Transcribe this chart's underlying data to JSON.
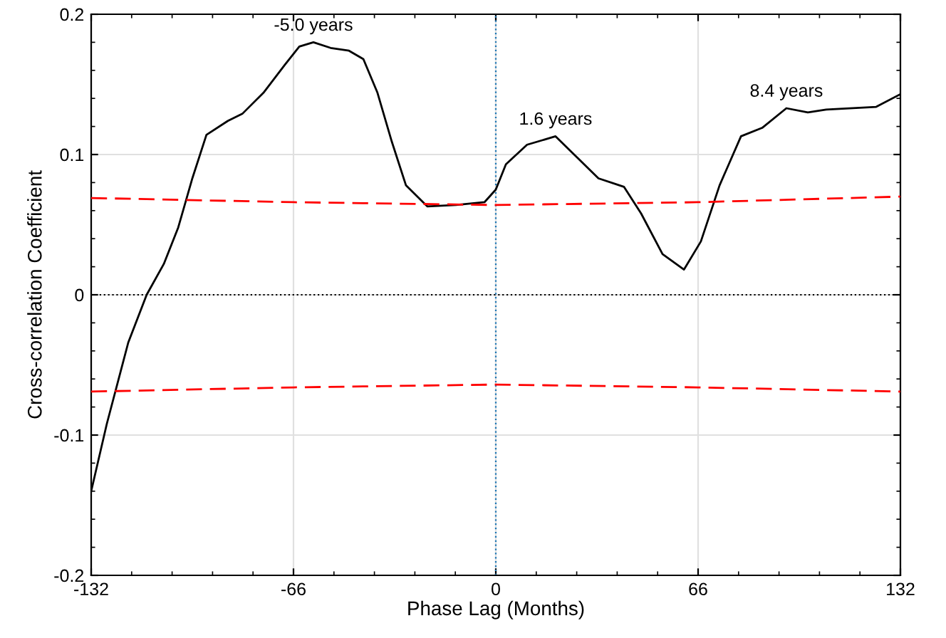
{
  "chart_data": {
    "type": "line",
    "xlabel": "Phase Lag (Months)",
    "ylabel": "Cross-correlation Coefficient",
    "xlim": [
      -132,
      132
    ],
    "ylim": [
      -0.2,
      0.2
    ],
    "xticks": [
      -132,
      -66,
      0,
      66,
      132
    ],
    "yticks": [
      -0.2,
      -0.1,
      0,
      0.1,
      0.2
    ],
    "grid": true,
    "series": [
      {
        "color": "#000000",
        "line_style": "solid",
        "x": [
          -132,
          -126.9,
          -119.9,
          -113.9,
          -108.3,
          -103.6,
          -99,
          -94.4,
          -87.4,
          -82.7,
          -75.8,
          -68.8,
          -64.1,
          -59.5,
          -53.9,
          -47.9,
          -43.2,
          -38.6,
          -33.9,
          -29.3,
          -22.3,
          -13,
          -3.7,
          0,
          3.3,
          10.2,
          19.5,
          26.5,
          33.5,
          41.8,
          47.4,
          54.4,
          61.4,
          66.9,
          73,
          80,
          86.9,
          94.8,
          101.8,
          107.8,
          124.1,
          132
        ],
        "values": [
          -0.14,
          -0.092,
          -0.034,
          0,
          0.022,
          0.048,
          0.083,
          0.114,
          0.124,
          0.129,
          0.144,
          0.164,
          0.177,
          0.18,
          0.176,
          0.174,
          0.168,
          0.144,
          0.109,
          0.078,
          0.063,
          0.064,
          0.066,
          0.075,
          0.093,
          0.107,
          0.113,
          0.098,
          0.083,
          0.077,
          0.058,
          0.029,
          0.018,
          0.038,
          0.078,
          0.113,
          0.119,
          0.133,
          0.13,
          0.132,
          0.134,
          0.143
        ]
      },
      {
        "color": "#ff0000",
        "line_style": "dashed",
        "x": [
          -132,
          -66,
          0,
          66,
          132
        ],
        "values": [
          0.069,
          0.066,
          0.064,
          0.066,
          0.07
        ]
      },
      {
        "color": "#ff0000",
        "line_style": "dashed",
        "x": [
          -132,
          -66,
          0,
          66,
          132
        ],
        "values": [
          -0.069,
          -0.066,
          -0.064,
          -0.066,
          -0.069
        ]
      }
    ],
    "ref_lines": [
      {
        "axis": "y",
        "value": 0,
        "color": "#000000",
        "line_style": "dotted"
      },
      {
        "axis": "x",
        "value": 0,
        "color": "#1f77b4",
        "line_style": "dotted"
      }
    ],
    "annotations": [
      {
        "text": "-5.0 years",
        "x": -59.5,
        "y": 0.18
      },
      {
        "text": "1.6 years",
        "x": 19.5,
        "y": 0.113
      },
      {
        "text": "8.4 years",
        "x": 94.8,
        "y": 0.133
      }
    ]
  }
}
